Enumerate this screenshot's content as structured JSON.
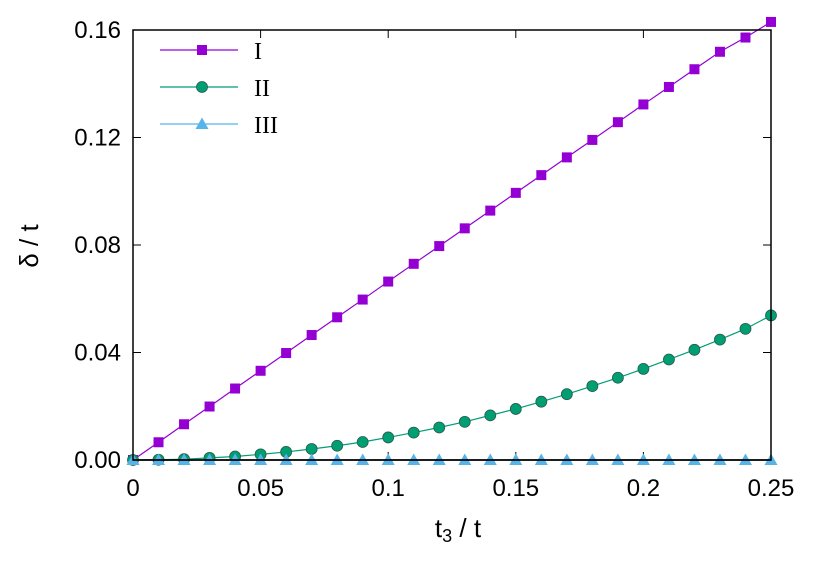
{
  "chart_data": {
    "type": "line",
    "title": "",
    "xlabel": {
      "main": "t",
      "sub": "3",
      "rest": " / t"
    },
    "ylabel": "δ / t",
    "xlim": [
      0,
      0.25
    ],
    "ylim": [
      0,
      0.16
    ],
    "xticks": [
      {
        "value": 0,
        "label": "0"
      },
      {
        "value": 0.05,
        "label": "0.05"
      },
      {
        "value": 0.1,
        "label": "0.1"
      },
      {
        "value": 0.15,
        "label": "0.15"
      },
      {
        "value": 0.2,
        "label": "0.2"
      },
      {
        "value": 0.25,
        "label": "0.25"
      }
    ],
    "yticks": [
      {
        "value": 0,
        "label": "0.00"
      },
      {
        "value": 0.04,
        "label": "0.04"
      },
      {
        "value": 0.08,
        "label": "0.08"
      },
      {
        "value": 0.12,
        "label": "0.12"
      },
      {
        "value": 0.16,
        "label": "0.16"
      }
    ],
    "grid": false,
    "legend_position": "top-left",
    "x": [
      0,
      0.01,
      0.02,
      0.03,
      0.04,
      0.05,
      0.06,
      0.07,
      0.08,
      0.09,
      0.1,
      0.11,
      0.12,
      0.13,
      0.14,
      0.15,
      0.16,
      0.17,
      0.18,
      0.19,
      0.2,
      0.21,
      0.22,
      0.23,
      0.24,
      0.25
    ],
    "series": [
      {
        "name": "I",
        "marker": "square",
        "color": "#9400d3",
        "values": [
          0,
          0.0066,
          0.0133,
          0.0199,
          0.0266,
          0.0332,
          0.0398,
          0.0465,
          0.0531,
          0.0597,
          0.0664,
          0.073,
          0.0796,
          0.0862,
          0.0928,
          0.0994,
          0.106,
          0.1126,
          0.1191,
          0.1257,
          0.1323,
          0.1388,
          0.1454,
          0.1519,
          0.1572,
          0.163
        ]
      },
      {
        "name": "II",
        "marker": "circle",
        "color": "#009e73",
        "values": [
          0,
          0.0001,
          0.0003,
          0.0008,
          0.0013,
          0.0021,
          0.003,
          0.0041,
          0.0053,
          0.0067,
          0.0084,
          0.0102,
          0.0121,
          0.0142,
          0.0166,
          0.019,
          0.0217,
          0.0245,
          0.0275,
          0.0306,
          0.0339,
          0.0374,
          0.041,
          0.0448,
          0.0488,
          0.0538
        ]
      },
      {
        "name": "III",
        "marker": "triangle",
        "color": "#56b4e9",
        "values": [
          0,
          0,
          0,
          0,
          0,
          0,
          0,
          0,
          0,
          0,
          0,
          0,
          0,
          0,
          0,
          0,
          0,
          0,
          0,
          0,
          0,
          0,
          0,
          0,
          0,
          0
        ]
      }
    ]
  }
}
